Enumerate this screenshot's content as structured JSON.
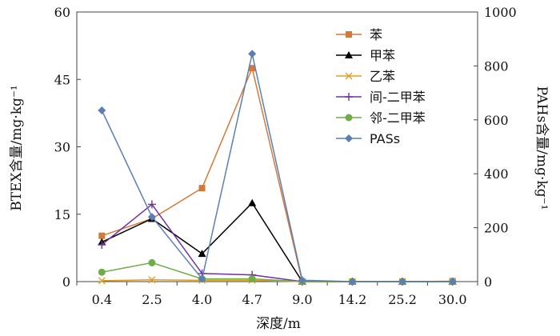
{
  "chart_data": {
    "type": "line",
    "categories": [
      "0.4",
      "2.5",
      "4.0",
      "4.7",
      "9.0",
      "14.2",
      "25.2",
      "30.0"
    ],
    "xlabel": "深度/m",
    "ylabel_left": "BTEX含量/mg·kg⁻¹",
    "ylabel_right": "PAHs含量/mg·kg⁻¹",
    "ylim_left": [
      0,
      60
    ],
    "yticks_left": [
      0,
      15,
      30,
      45,
      60
    ],
    "ylim_right": [
      0,
      1000
    ],
    "yticks_right": [
      0,
      200,
      400,
      600,
      800,
      1000
    ],
    "grid": false,
    "legend_position": "top-right",
    "series": [
      {
        "name": "苯",
        "axis": "left",
        "color": "#d4793a",
        "marker": "square",
        "values": [
          10.2,
          14.0,
          20.8,
          47.5,
          0.0,
          0.0,
          0.0,
          0.1
        ]
      },
      {
        "name": "甲苯",
        "axis": "left",
        "color": "#000000",
        "marker": "triangle",
        "values": [
          8.8,
          14.0,
          6.2,
          17.5,
          0.0,
          0.0,
          0.0,
          0.0
        ]
      },
      {
        "name": "乙苯",
        "axis": "left",
        "color": "#e0a020",
        "marker": "x",
        "values": [
          0.2,
          0.4,
          0.3,
          0.3,
          0.0,
          0.0,
          0.0,
          0.0
        ]
      },
      {
        "name": "间-二甲苯",
        "axis": "left",
        "color": "#7030a0",
        "marker": "plus",
        "values": [
          8.2,
          17.2,
          1.8,
          1.5,
          0.0,
          0.0,
          0.0,
          0.0
        ]
      },
      {
        "name": "邻-二甲苯",
        "axis": "left",
        "color": "#70ad47",
        "marker": "circle",
        "values": [
          2.1,
          4.2,
          0.6,
          0.6,
          0.0,
          0.0,
          0.0,
          0.0
        ]
      },
      {
        "name": "PASs",
        "axis": "right",
        "color": "#5b7fb5",
        "marker": "diamond",
        "values": [
          635,
          240,
          10,
          845,
          5,
          0,
          0,
          0
        ]
      }
    ]
  }
}
